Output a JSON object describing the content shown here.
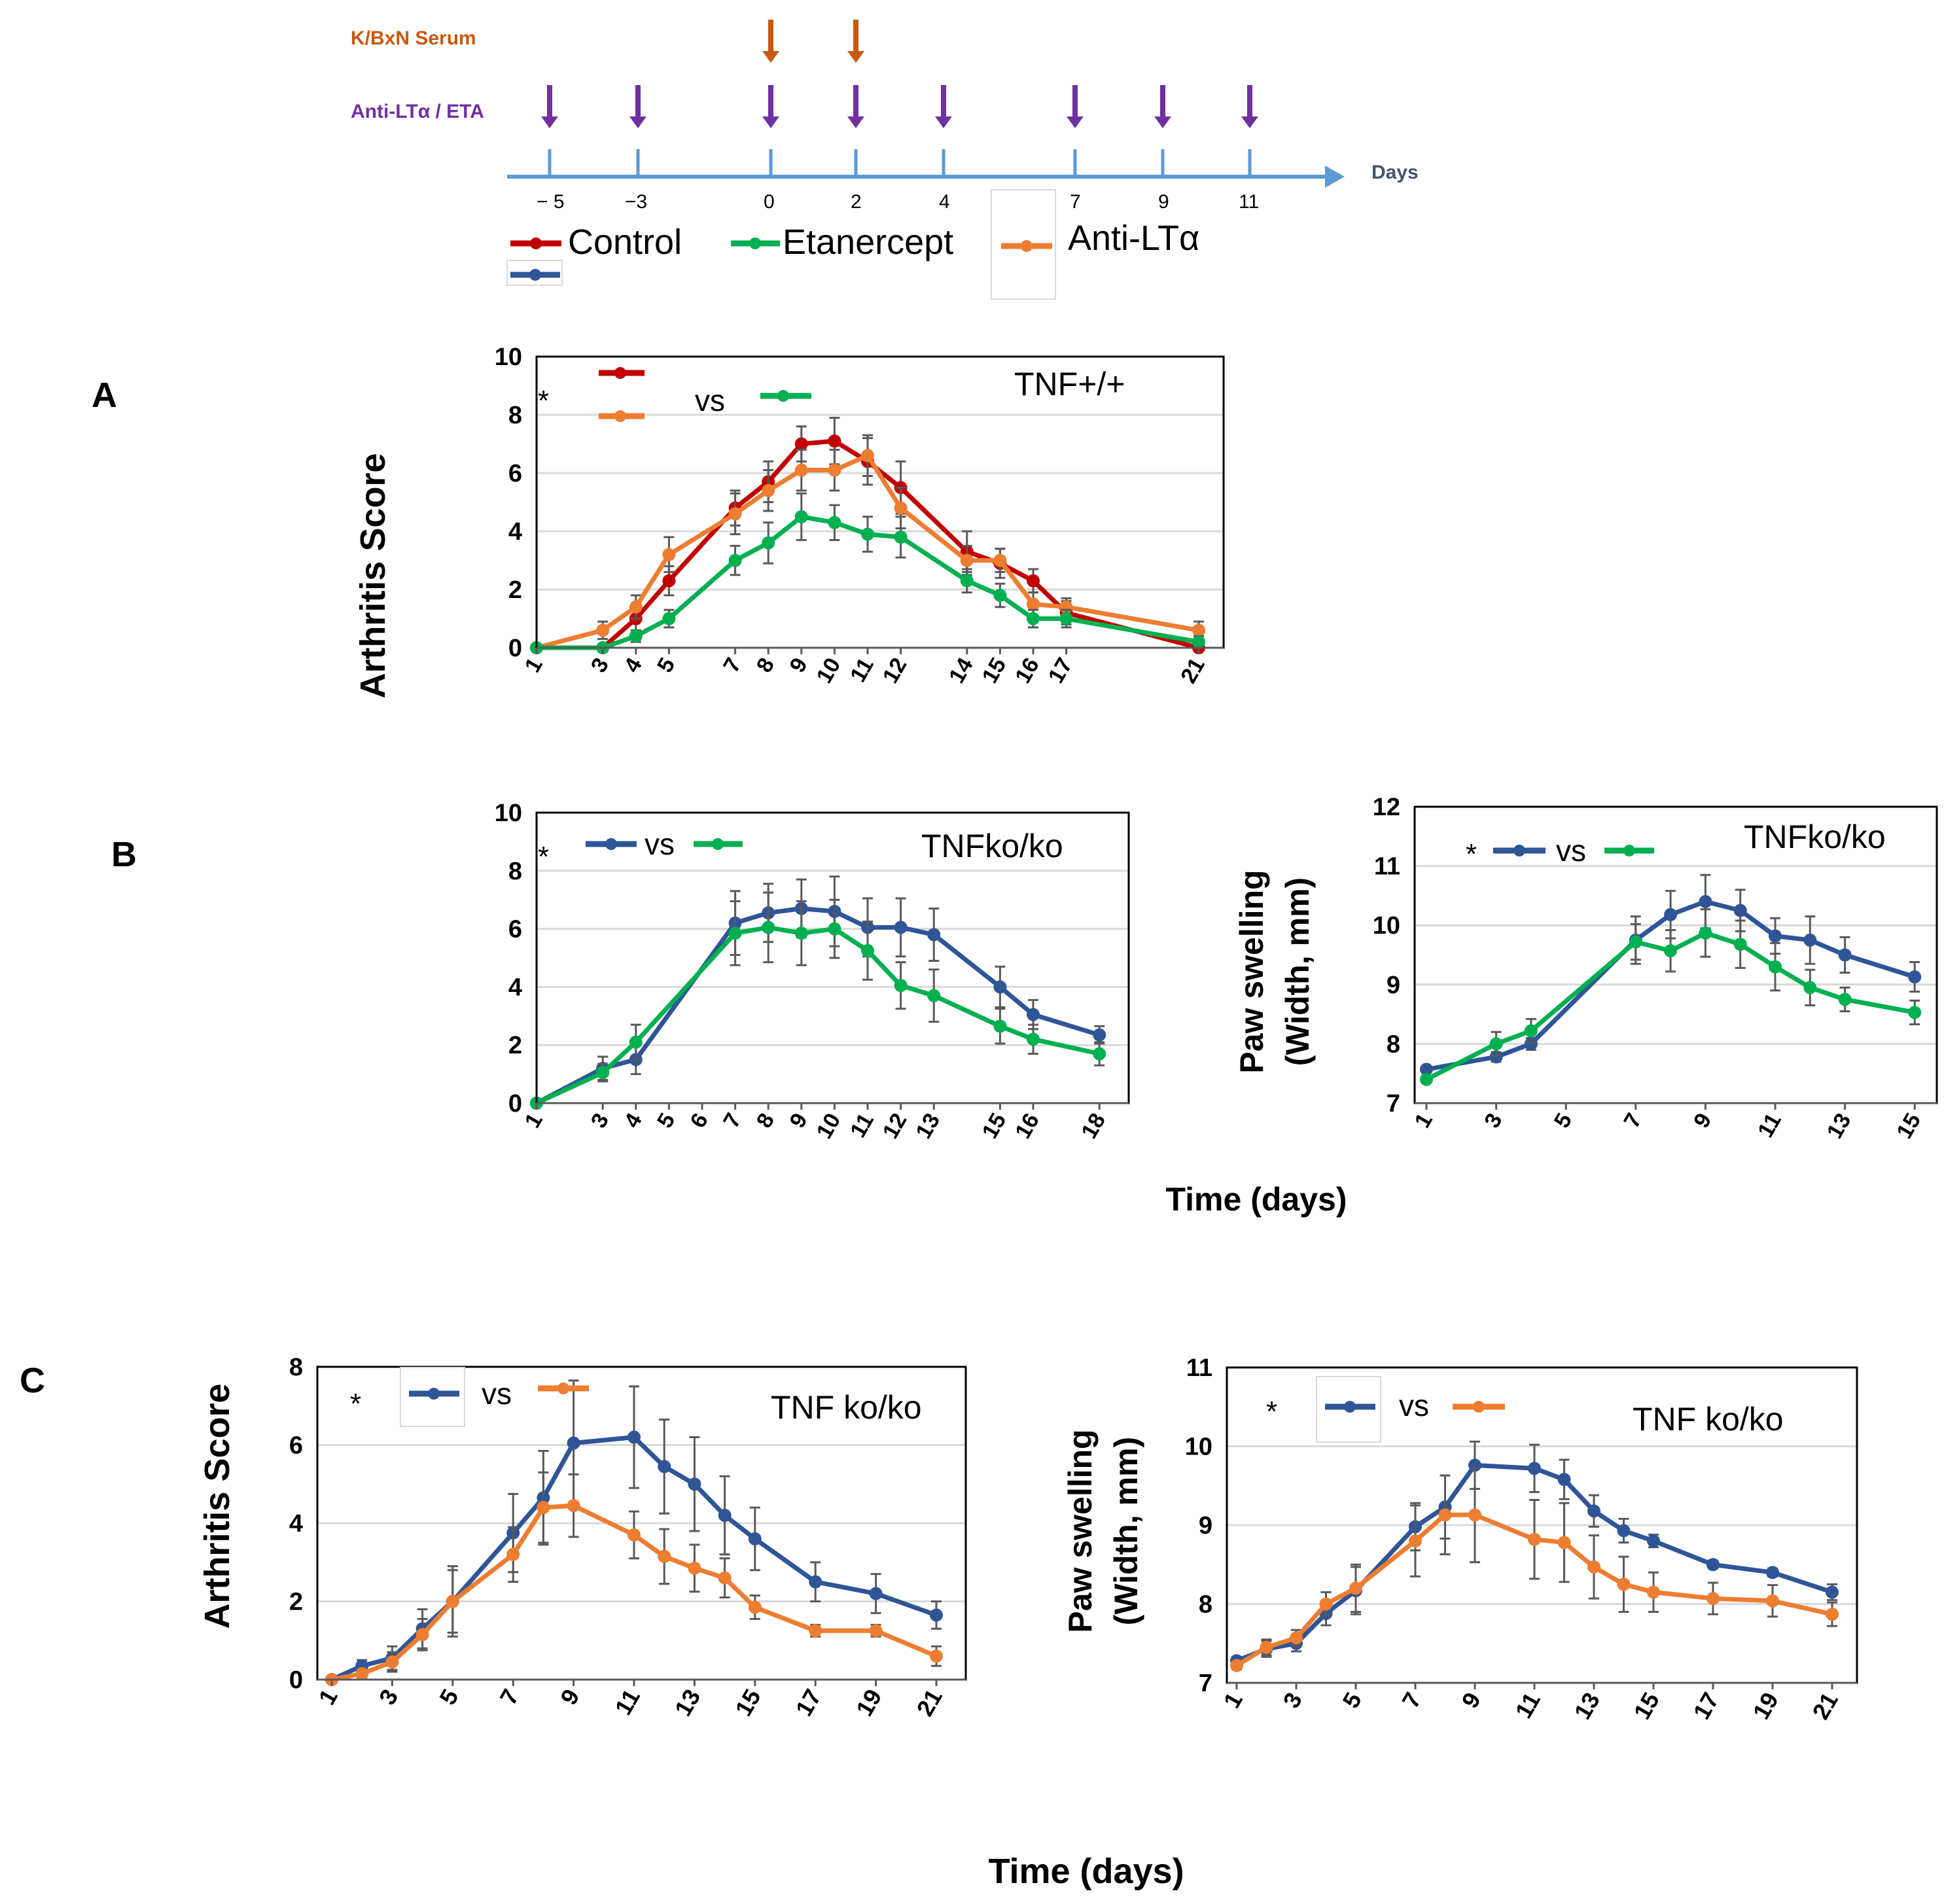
{
  "colors": {
    "control": "#C00000",
    "etanercept": "#00B050",
    "anti_lta": "#ED7D31",
    "tnfko": "#2F5597",
    "timeline": "#5B9BD5",
    "serum_arrow": "#C55A11",
    "treat_arrow": "#7030A0"
  },
  "timeline": {
    "serum_label": "K/BxN Serum",
    "treatment_label": "Anti-LTα / ETA",
    "axis_label": "Days",
    "serum_days": [
      0,
      2
    ],
    "treatment_days": [
      -5,
      -3,
      0,
      2,
      4,
      7,
      9,
      11
    ],
    "tick_labels": [
      "− 5",
      "−3",
      "0",
      "2",
      "4",
      "7",
      "9",
      "11"
    ]
  },
  "legend": {
    "control": "Control",
    "etanercept": "Etanercept",
    "anti_lta": "Anti-LTα"
  },
  "panel_labels": {
    "a": "A",
    "b": "B",
    "c": "C"
  },
  "common_labels": {
    "star": "*",
    "vs": "vs",
    "time_b": "Time (days)",
    "time_c": "Time (days)"
  },
  "chart_data": [
    {
      "id": "A",
      "type": "line",
      "ylabel": "Arthritis Score",
      "annotation": "TNF+/+",
      "ylim": [
        0,
        10
      ],
      "yticks": [
        0,
        2,
        4,
        6,
        8,
        10
      ],
      "xlim": [
        1,
        21
      ],
      "x": [
        1,
        3,
        4,
        5,
        7,
        8,
        9,
        10,
        11,
        12,
        14,
        15,
        16,
        17,
        21
      ],
      "series": [
        {
          "name": "Control",
          "color_key": "control",
          "values": [
            0,
            0,
            1.0,
            2.3,
            4.8,
            5.7,
            7.0,
            7.1,
            6.4,
            5.5,
            3.3,
            2.9,
            2.3,
            1.2,
            0
          ],
          "errors": [
            0,
            0,
            0.5,
            0.5,
            0.6,
            0.7,
            0.6,
            0.8,
            0.8,
            0.9,
            0.7,
            0.5,
            0.4,
            0.4,
            0
          ]
        },
        {
          "name": "Anti-LTα",
          "color_key": "anti_lta",
          "values": [
            0,
            0.6,
            1.4,
            3.2,
            4.6,
            5.4,
            6.1,
            6.1,
            6.6,
            4.8,
            3.0,
            3.0,
            1.5,
            1.4,
            0.6
          ],
          "errors": [
            0,
            0.3,
            0.4,
            0.6,
            0.7,
            0.7,
            0.7,
            0.7,
            0.7,
            0.7,
            0.5,
            0.4,
            0.4,
            0.3,
            0.3
          ]
        },
        {
          "name": "Etanercept",
          "color_key": "etanercept",
          "values": [
            0,
            0,
            0.4,
            1.0,
            3.0,
            3.6,
            4.5,
            4.3,
            3.9,
            3.8,
            2.3,
            1.8,
            1.0,
            1.0,
            0.2
          ],
          "errors": [
            0,
            0,
            0.2,
            0.3,
            0.5,
            0.7,
            0.8,
            0.6,
            0.6,
            0.7,
            0.4,
            0.4,
            0.3,
            0.3,
            0.2
          ]
        }
      ]
    },
    {
      "id": "B1",
      "type": "line",
      "ylabel": "",
      "annotation": "TNFko/ko",
      "ylim": [
        0,
        10
      ],
      "yticks": [
        0,
        2,
        4,
        6,
        8,
        10
      ],
      "xlim": [
        1,
        18
      ],
      "xticks": [
        1,
        3,
        4,
        5,
        6,
        7,
        8,
        9,
        10,
        11,
        12,
        13,
        15,
        16,
        18
      ],
      "x": [
        1,
        3,
        4,
        7,
        8,
        9,
        10,
        11,
        12,
        13,
        15,
        16,
        18
      ],
      "series": [
        {
          "name": "TNFko/ko",
          "color_key": "tnfko",
          "values": [
            0,
            1.2,
            1.5,
            6.2,
            6.55,
            6.7,
            6.6,
            6.05,
            6.05,
            5.8,
            4.0,
            3.05,
            2.35
          ],
          "errors": [
            0,
            0.4,
            0.5,
            1.1,
            1.0,
            1.0,
            1.2,
            1.0,
            1.0,
            0.9,
            0.7,
            0.5,
            0.3
          ]
        },
        {
          "name": "Etanercept",
          "color_key": "etanercept",
          "values": [
            0,
            1.05,
            2.1,
            5.85,
            6.05,
            5.85,
            6.0,
            5.25,
            4.05,
            3.7,
            2.65,
            2.2,
            1.7
          ],
          "errors": [
            0,
            0.3,
            0.6,
            1.1,
            1.2,
            1.1,
            1.0,
            1.0,
            0.8,
            0.9,
            0.6,
            0.5,
            0.4
          ]
        }
      ]
    },
    {
      "id": "B2",
      "type": "line",
      "ylabel": "Paw swelling (Width, mm)",
      "ylabel_line1": "Paw swelling",
      "ylabel_line2": "(Width, mm)",
      "annotation": "TNFko/ko",
      "ylim": [
        7,
        12
      ],
      "yticks": [
        7,
        8,
        9,
        10,
        11,
        12
      ],
      "xlim": [
        1,
        15
      ],
      "xticks": [
        1,
        3,
        5,
        7,
        9,
        11,
        13,
        15
      ],
      "x": [
        1,
        3,
        4,
        7,
        8,
        9,
        10,
        11,
        12,
        13,
        15
      ],
      "series": [
        {
          "name": "TNFko/ko",
          "color_key": "tnfko",
          "values": [
            7.57,
            7.78,
            8.0,
            9.75,
            10.18,
            10.4,
            10.25,
            9.82,
            9.75,
            9.5,
            9.13
          ],
          "errors": [
            0,
            0.08,
            0.1,
            0.4,
            0.4,
            0.45,
            0.35,
            0.3,
            0.4,
            0.3,
            0.25
          ]
        },
        {
          "name": "Etanercept",
          "color_key": "etanercept",
          "values": [
            7.4,
            8.0,
            8.22,
            9.72,
            9.57,
            9.87,
            9.68,
            9.3,
            8.95,
            8.75,
            8.53
          ],
          "errors": [
            0,
            0.2,
            0.2,
            0.3,
            0.35,
            0.4,
            0.4,
            0.4,
            0.3,
            0.2,
            0.2
          ]
        }
      ]
    },
    {
      "id": "C1",
      "type": "line",
      "ylabel": "Arthritis Score",
      "annotation": "TNF ko/ko",
      "ylim": [
        0,
        8
      ],
      "yticks": [
        0,
        2,
        4,
        6,
        8
      ],
      "xlim": [
        1,
        21
      ],
      "xticks": [
        1,
        3,
        5,
        7,
        9,
        11,
        13,
        15,
        17,
        19,
        21
      ],
      "x": [
        1,
        2,
        3,
        4,
        5,
        7,
        8,
        9,
        11,
        12,
        13,
        14,
        15,
        17,
        19,
        21
      ],
      "series": [
        {
          "name": "TNF ko/ko",
          "color_key": "tnfko",
          "values": [
            0,
            0.35,
            0.55,
            1.3,
            2.0,
            3.75,
            4.65,
            6.05,
            6.2,
            5.45,
            5.0,
            4.2,
            3.6,
            2.5,
            2.2,
            1.65
          ],
          "errors": [
            0,
            0.15,
            0.3,
            0.5,
            0.9,
            1.0,
            1.2,
            1.6,
            1.3,
            1.2,
            1.2,
            1.0,
            0.8,
            0.5,
            0.5,
            0.35
          ]
        },
        {
          "name": "Anti-LTα",
          "color_key": "anti_lta",
          "values": [
            0,
            0.15,
            0.45,
            1.15,
            2.0,
            3.2,
            4.4,
            4.45,
            3.7,
            3.15,
            2.85,
            2.6,
            1.85,
            1.25,
            1.25,
            0.6
          ],
          "errors": [
            0,
            0.1,
            0.25,
            0.4,
            0.8,
            0.7,
            0.9,
            0.8,
            0.6,
            0.7,
            0.6,
            0.5,
            0.3,
            0.15,
            0.15,
            0.25
          ]
        }
      ]
    },
    {
      "id": "C2",
      "type": "line",
      "ylabel": "Paw swelling (Width, mm)",
      "ylabel_line1": "Paw swelling",
      "ylabel_line2": "(Width, mm)",
      "annotation": "TNF ko/ko",
      "ylim": [
        7,
        11
      ],
      "yticks": [
        7,
        8,
        9,
        10,
        11
      ],
      "xlim": [
        1,
        21
      ],
      "xticks": [
        1,
        3,
        5,
        7,
        9,
        11,
        13,
        15,
        17,
        19,
        21
      ],
      "x": [
        1,
        2,
        3,
        4,
        5,
        7,
        8,
        9,
        11,
        12,
        13,
        14,
        15,
        17,
        19,
        21
      ],
      "series": [
        {
          "name": "TNF ko/ko",
          "color_key": "tnfko",
          "values": [
            7.28,
            7.43,
            7.5,
            7.88,
            8.17,
            8.98,
            9.23,
            9.76,
            9.72,
            9.58,
            9.18,
            8.93,
            8.8,
            8.5,
            8.4,
            8.15
          ],
          "errors": [
            0.05,
            0.1,
            0.1,
            0.15,
            0.3,
            0.3,
            0.4,
            0.3,
            0.3,
            0.25,
            0.2,
            0.15,
            0.08,
            0.05,
            0.05,
            0.1
          ]
        },
        {
          "name": "Anti-LTα",
          "color_key": "anti_lta",
          "values": [
            7.22,
            7.45,
            7.57,
            8.0,
            8.2,
            8.8,
            9.13,
            9.13,
            8.82,
            8.78,
            8.47,
            8.25,
            8.15,
            8.07,
            8.04,
            7.87
          ],
          "errors": [
            0.05,
            0.1,
            0.1,
            0.15,
            0.3,
            0.45,
            0.5,
            0.6,
            0.5,
            0.5,
            0.4,
            0.35,
            0.25,
            0.2,
            0.2,
            0.15
          ]
        }
      ]
    }
  ]
}
